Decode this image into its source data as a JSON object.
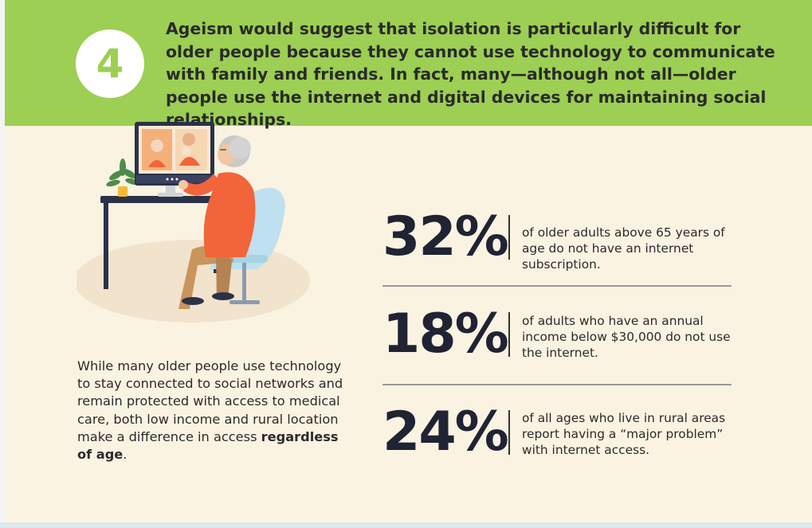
{
  "banner": {
    "number": "4",
    "text": "Ageism would suggest that isolation is particularly difficult for older people because they cannot use technology to communicate with family and friends. In fact, many—although not all—older people use the internet and digital devices for maintaining social relationships."
  },
  "body": {
    "text_plain": "While many older people use technology to stay connected to social networks and remain protected with access to medical care, both low income and rural location make a difference in access ",
    "text_bold": "regardless of age",
    "text_end": "."
  },
  "stats": [
    {
      "value": "32%",
      "text": "of older adults above 65 years of age do not have an internet subscription."
    },
    {
      "value": "18%",
      "text": "of adults who have an annual income below $30,000 do not use the internet."
    },
    {
      "value": "24%",
      "text": "of all ages who live in rural areas report having a “major problem” with internet access."
    }
  ],
  "colors": {
    "banner_green": "#9ccf53",
    "background_cream": "#faf3e2",
    "stat_navy": "#1f2333",
    "shirt_orange": "#f2643a",
    "chair_blue": "#bfe0ee"
  },
  "icons": [
    "older-person-video-call-illustration"
  ]
}
